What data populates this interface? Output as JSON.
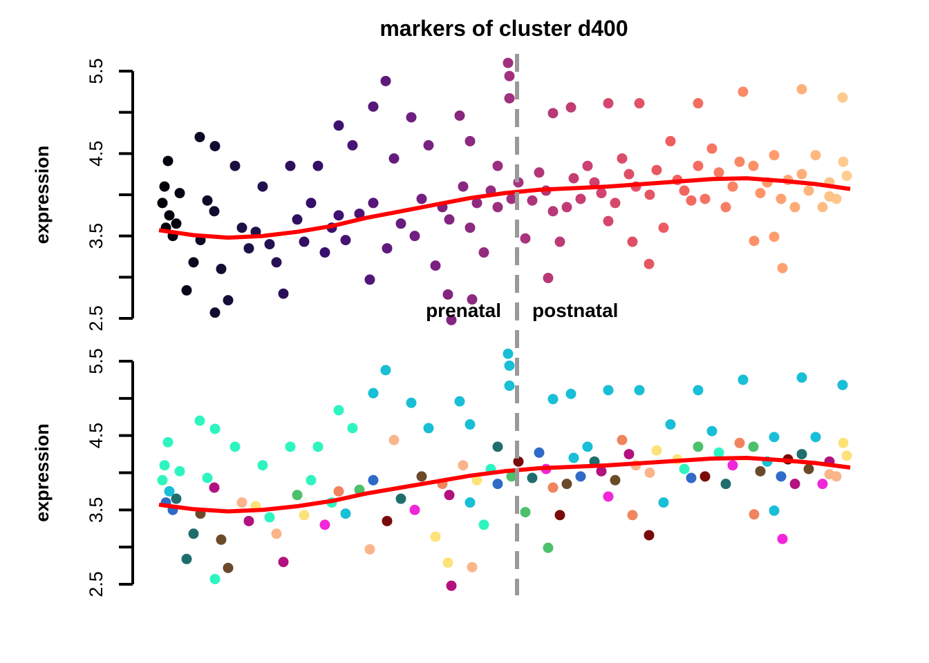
{
  "chart_data": {
    "type": "scatter",
    "title": "markers of cluster d400",
    "annotations": {
      "left": "prenatal",
      "right": "postnatal",
      "boundary_x": 51.8
    },
    "x_note_visible": false,
    "xlim": [
      0,
      100
    ],
    "panels": [
      {
        "ylabel": "expression",
        "ylim": [
          2.5,
          5.5
        ],
        "yticks": [
          2.5,
          3,
          3.5,
          4,
          4.5,
          5,
          5.5
        ],
        "ytick_labels": [
          "2.5",
          "",
          "3.5",
          "",
          "4.5",
          "",
          "5.5"
        ],
        "coloring": "gradient"
      },
      {
        "ylabel": "expression",
        "ylim": [
          2.5,
          5.5
        ],
        "yticks": [
          2.5,
          3,
          3.5,
          4,
          4.5,
          5,
          5.5
        ],
        "ytick_labels": [
          "2.5",
          "",
          "3.5",
          "",
          "4.5",
          "",
          "5.5"
        ],
        "coloring": "categorical"
      }
    ],
    "gradient_colors": [
      "#000004",
      "#1d1147",
      "#3b0f70",
      "#721f81",
      "#9e2f7f",
      "#cd4071",
      "#f1605d",
      "#fd9668",
      "#fecf92"
    ],
    "categorical_colors": [
      "#18bfd6",
      "#2ef5c0",
      "#1f6e6e",
      "#7a0a0a",
      "#b3117f",
      "#f0845e",
      "#fde27a",
      "#2f6ac8",
      "#4cc06b",
      "#6b4a2a",
      "#f026d8",
      "#fbb58a"
    ],
    "trend_color": "#ff0000",
    "boundary_color": "#999999",
    "trend": [
      [
        0,
        3.57
      ],
      [
        5,
        3.51
      ],
      [
        10,
        3.48
      ],
      [
        15,
        3.5
      ],
      [
        20,
        3.55
      ],
      [
        25,
        3.62
      ],
      [
        30,
        3.72
      ],
      [
        35,
        3.8
      ],
      [
        40,
        3.88
      ],
      [
        45,
        3.96
      ],
      [
        50,
        4.02
      ],
      [
        55,
        4.06
      ],
      [
        60,
        4.08
      ],
      [
        65,
        4.1
      ],
      [
        70,
        4.13
      ],
      [
        75,
        4.16
      ],
      [
        80,
        4.19
      ],
      [
        85,
        4.2
      ],
      [
        90,
        4.17
      ],
      [
        95,
        4.13
      ],
      [
        100,
        4.07
      ]
    ],
    "points": [
      [
        5.9,
        4.7
      ],
      [
        8.1,
        4.59
      ],
      [
        32.8,
        5.38
      ],
      [
        31,
        5.07
      ],
      [
        50.5,
        5.6
      ],
      [
        50.7,
        5.44
      ],
      [
        50.7,
        5.17
      ],
      [
        42.3,
        2.48
      ],
      [
        45.3,
        2.73
      ],
      [
        41.8,
        2.79
      ],
      [
        8.1,
        2.57
      ],
      [
        56.3,
        2.99
      ],
      [
        70.9,
        3.16
      ],
      [
        90.2,
        3.11
      ],
      [
        86.1,
        3.44
      ],
      [
        89,
        3.49
      ],
      [
        98.9,
        5.18
      ],
      [
        93,
        5.28
      ],
      [
        84.5,
        5.25
      ],
      [
        78,
        5.11
      ],
      [
        69.5,
        5.11
      ],
      [
        65,
        5.11
      ],
      [
        59.6,
        5.06
      ],
      [
        57,
        4.99
      ],
      [
        43.5,
        4.96
      ],
      [
        36.5,
        4.94
      ],
      [
        26,
        4.84
      ],
      [
        1.3,
        4.41
      ],
      [
        1,
        3.6
      ],
      [
        4,
        2.84
      ],
      [
        10,
        2.72
      ],
      [
        18,
        2.8
      ],
      [
        30.5,
        2.97
      ],
      [
        40,
        3.14
      ],
      [
        47,
        3.3
      ],
      [
        53,
        3.47
      ],
      [
        58,
        3.43
      ],
      [
        65,
        3.68
      ],
      [
        68.5,
        3.43
      ],
      [
        73,
        3.6
      ],
      [
        77,
        3.93
      ],
      [
        82,
        3.85
      ],
      [
        87,
        4.02
      ],
      [
        92,
        3.85
      ],
      [
        97,
        3.98
      ],
      [
        99.5,
        4.23
      ],
      [
        95,
        4.48
      ],
      [
        89,
        4.48
      ],
      [
        80,
        4.56
      ],
      [
        74,
        4.65
      ],
      [
        67,
        4.44
      ],
      [
        62,
        4.35
      ],
      [
        55,
        4.27
      ],
      [
        49,
        4.35
      ],
      [
        45,
        4.65
      ],
      [
        39,
        4.6
      ],
      [
        34,
        4.44
      ],
      [
        28,
        4.6
      ],
      [
        23,
        4.35
      ],
      [
        19,
        4.35
      ],
      [
        15,
        4.1
      ],
      [
        11,
        4.35
      ],
      [
        7,
        3.93
      ],
      [
        3,
        4.02
      ],
      [
        2,
        3.5
      ],
      [
        5,
        3.18
      ],
      [
        9,
        3.1
      ],
      [
        13,
        3.35
      ],
      [
        17,
        3.18
      ],
      [
        21,
        3.43
      ],
      [
        25,
        3.6
      ],
      [
        29,
        3.77
      ],
      [
        33,
        3.35
      ],
      [
        37,
        3.5
      ],
      [
        41,
        3.85
      ],
      [
        45,
        3.6
      ],
      [
        49,
        3.85
      ],
      [
        54,
        3.93
      ],
      [
        59,
        3.85
      ],
      [
        64,
        4.02
      ],
      [
        69,
        4.1
      ],
      [
        75,
        4.18
      ],
      [
        81,
        4.27
      ],
      [
        86,
        4.35
      ],
      [
        91,
        4.18
      ],
      [
        96,
        3.85
      ],
      [
        0.5,
        3.9
      ],
      [
        1.5,
        3.75
      ],
      [
        0.8,
        4.1
      ],
      [
        2.5,
        3.65
      ],
      [
        6,
        3.45
      ],
      [
        8,
        3.8
      ],
      [
        12,
        3.6
      ],
      [
        14,
        3.55
      ],
      [
        16,
        3.4
      ],
      [
        20,
        3.7
      ],
      [
        22,
        3.9
      ],
      [
        24,
        3.3
      ],
      [
        26,
        3.75
      ],
      [
        27,
        3.45
      ],
      [
        31,
        3.9
      ],
      [
        35,
        3.65
      ],
      [
        38,
        3.95
      ],
      [
        42,
        3.7
      ],
      [
        44,
        4.1
      ],
      [
        46,
        3.9
      ],
      [
        48,
        4.05
      ],
      [
        51,
        3.95
      ],
      [
        52,
        4.15
      ],
      [
        56,
        4.05
      ],
      [
        57,
        3.8
      ],
      [
        60,
        4.2
      ],
      [
        61,
        3.95
      ],
      [
        63,
        4.15
      ],
      [
        66,
        3.9
      ],
      [
        68,
        4.25
      ],
      [
        71,
        4.0
      ],
      [
        72,
        4.3
      ],
      [
        76,
        4.05
      ],
      [
        78,
        4.35
      ],
      [
        79,
        3.95
      ],
      [
        83,
        4.1
      ],
      [
        84,
        4.4
      ],
      [
        88,
        4.15
      ],
      [
        90,
        3.95
      ],
      [
        93,
        4.25
      ],
      [
        94,
        4.05
      ],
      [
        97,
        4.15
      ],
      [
        98,
        3.95
      ],
      [
        99,
        4.4
      ]
    ]
  }
}
